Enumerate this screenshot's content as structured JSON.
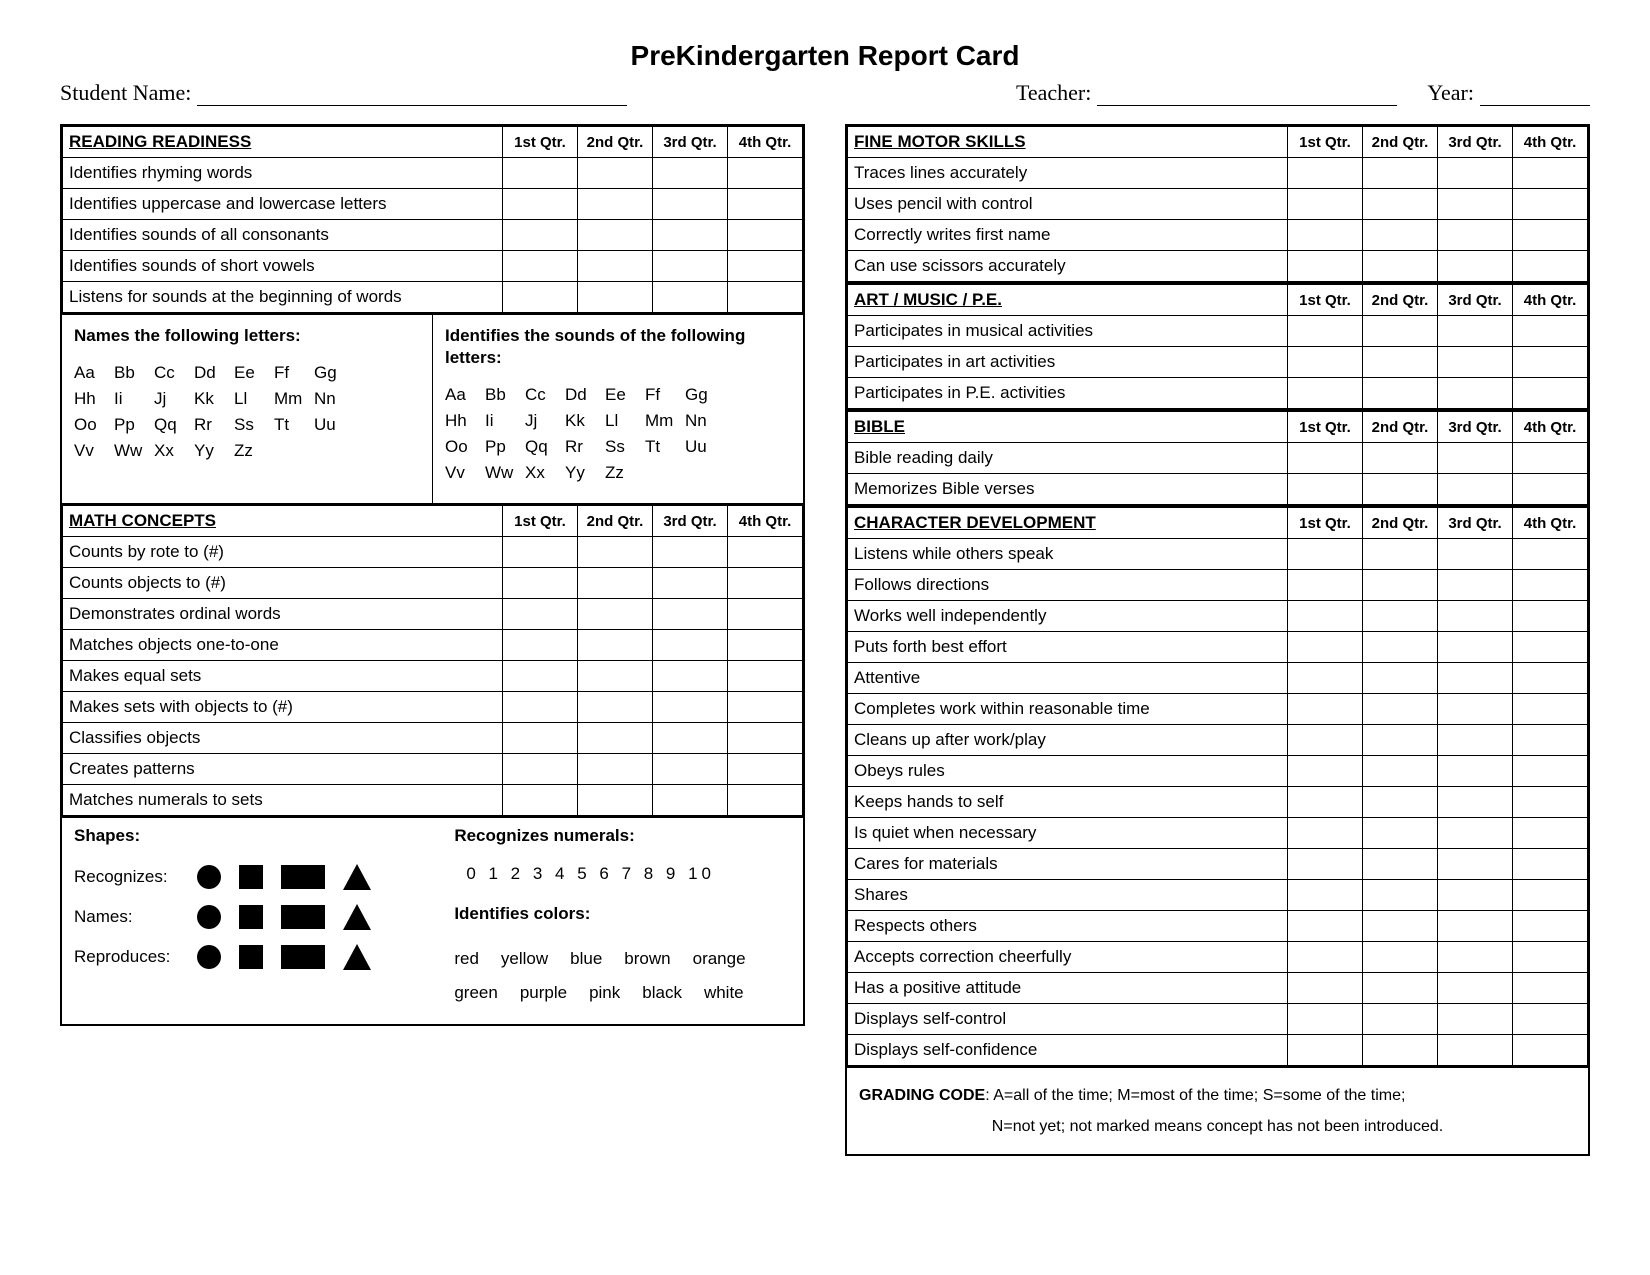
{
  "title": "PreKindergarten Report Card",
  "header": {
    "student_label": "Student Name:",
    "teacher_label": "Teacher:",
    "year_label": "Year:",
    "student_line_w": 430,
    "teacher_line_w": 300,
    "year_line_w": 110
  },
  "qtrs": [
    "1st Qtr.",
    "2nd Qtr.",
    "3rd Qtr.",
    "4th Qtr."
  ],
  "left": {
    "reading": {
      "heading": "READING READINESS",
      "rows": [
        "Identifies rhyming words",
        "Identifies uppercase and lowercase letters",
        "Identifies sounds of all consonants",
        "Identifies sounds of short vowels",
        "Listens for sounds at the beginning of words"
      ]
    },
    "letters": {
      "left_title": "Names the following letters:",
      "right_title": "Identifies the sounds of  the following letters:",
      "rows": [
        [
          "Aa",
          "Bb",
          "Cc",
          "Dd",
          "Ee",
          "Ff",
          "Gg"
        ],
        [
          "Hh",
          "Ii",
          "Jj",
          "Kk",
          "Ll",
          "Mm",
          "Nn"
        ],
        [
          "Oo",
          "Pp",
          "Qq",
          "Rr",
          "Ss",
          "Tt",
          "Uu"
        ],
        [
          "Vv",
          "Ww",
          "Xx",
          "Yy",
          "Zz",
          "",
          ""
        ]
      ]
    },
    "math": {
      "heading": "MATH CONCEPTS",
      "rows": [
        "Counts by rote to (#)",
        "Counts objects to (#)",
        "Demonstrates ordinal words",
        "Matches objects one-to-one",
        "Makes equal sets",
        "Makes sets with objects to (#)",
        "Classifies objects",
        "Creates patterns",
        "Matches numerals to sets"
      ]
    },
    "shapes": {
      "title": "Shapes:",
      "row_labels": [
        "Recognizes:",
        "Names:",
        "Reproduces:"
      ],
      "num_title": "Recognizes numerals:",
      "numerals": "0  1  2  3  4  5  6  7  8  9  10",
      "colors_title": "Identifies colors:",
      "colors": [
        "red",
        "yellow",
        "blue",
        "brown",
        "orange",
        "green",
        "purple",
        "pink",
        "black",
        "white"
      ]
    }
  },
  "right": {
    "fine": {
      "heading": "FINE MOTOR SKILLS",
      "rows": [
        "Traces lines accurately",
        "Uses pencil with control",
        "Correctly writes first name",
        "Can use scissors accurately"
      ]
    },
    "art": {
      "heading": "ART / MUSIC / P.E.",
      "rows": [
        "Participates in musical activities",
        "Participates in art activities",
        "Participates in P.E. activities"
      ]
    },
    "bible": {
      "heading": "BIBLE",
      "rows": [
        "Bible reading daily",
        "Memorizes Bible verses"
      ]
    },
    "char": {
      "heading": "CHARACTER DEVELOPMENT",
      "rows": [
        "Listens while others speak",
        "Follows directions",
        "Works well independently",
        "Puts forth best effort",
        "Attentive",
        "Completes work within reasonable time",
        "Cleans up after work/play",
        "Obeys rules",
        "Keeps hands to self",
        "Is quiet when necessary",
        "Cares for materials",
        "Shares",
        "Respects others",
        "Accepts correction cheerfully",
        "Has a positive attitude",
        "Displays self-control",
        "Displays self-confidence"
      ]
    },
    "grading": {
      "label": "GRADING CODE",
      "line1": ": A=all of the time; M=most of the time; S=some of the time;",
      "line2": "N=not yet; not marked means concept has not been introduced."
    }
  }
}
